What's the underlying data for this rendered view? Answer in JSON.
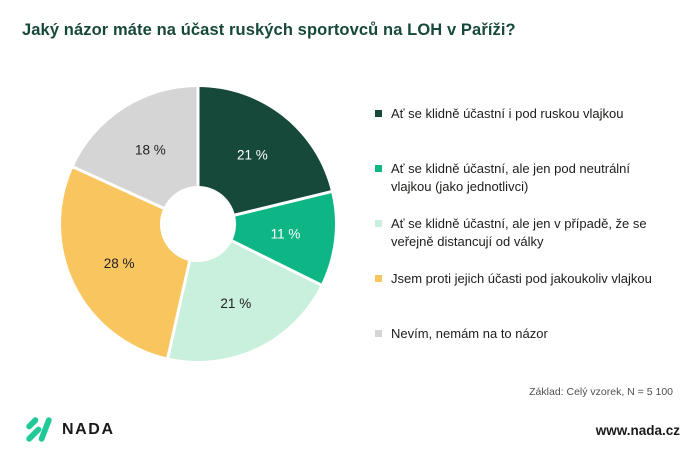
{
  "title": "Jaký názor máte na účast ruských sportovců na LOH v Paříži?",
  "colors": {
    "title_green": "#17493B",
    "brand_green": "#20C997",
    "separator": "#FFFFFF"
  },
  "chart_data": {
    "type": "pie",
    "subtype": "donut",
    "title": "Jaký názor máte na účast ruských sportovců na LOH v Paříži?",
    "start_angle_deg": 0,
    "direction": "clockwise",
    "donut_hole_ratio": 0.28,
    "legend_position": "right",
    "series": [
      {
        "label": "Ať se klidně účastní i pod ruskou vlajkou",
        "value": 21,
        "display": "21 %",
        "color": "#17493B",
        "label_color": "#FFFFFF"
      },
      {
        "label": "Ať se klidně účastní, ale jen pod neutrální vlajkou (jako jednotlivci)",
        "value": 11,
        "display": "11 %",
        "color": "#0FB685",
        "label_color": "#FFFFFF"
      },
      {
        "label": "Ať se klidně účastní, ale jen v případě, že se veřejně distancují od války",
        "value": 21,
        "display": "21 %",
        "color": "#C9F0DC",
        "label_color": "#222222"
      },
      {
        "label": "Jsem proti jejich účasti pod jakoukoliv vlajkou",
        "value": 28,
        "display": "28 %",
        "color": "#F9C55F",
        "label_color": "#222222"
      },
      {
        "label": "Nevím, nemám na to názor",
        "value": 18,
        "display": "18 %",
        "color": "#D5D5D5",
        "label_color": "#222222"
      }
    ]
  },
  "footnote": "Základ: Celý vzorek, N = 5 100",
  "footer": {
    "brand": "NADA",
    "website": "www.nada.cz"
  }
}
